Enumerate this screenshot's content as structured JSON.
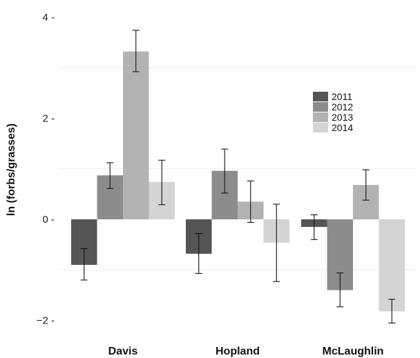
{
  "chart_data": {
    "type": "bar",
    "title": "",
    "xlabel": "",
    "ylabel": "ln (forbs/grasses)",
    "ylim": [
      -2.35,
      4.3
    ],
    "yticks": [
      {
        "value": -2,
        "label": "−2 -"
      },
      {
        "value": 0,
        "label": "0 -"
      },
      {
        "value": 2,
        "label": "2 -"
      },
      {
        "value": 4,
        "label": "4 -"
      }
    ],
    "gridlines": [
      -1,
      1,
      3
    ],
    "categories": [
      "Davis",
      "Hopland",
      "McLaughlin"
    ],
    "series": [
      {
        "name": "2011",
        "color": "#555555",
        "values": [
          -0.9,
          -0.68,
          -0.15
        ],
        "error_low": [
          -1.2,
          -1.07,
          -0.4
        ],
        "error_high": [
          -0.58,
          -0.28,
          0.09
        ]
      },
      {
        "name": "2012",
        "color": "#8c8c8c",
        "values": [
          0.87,
          0.96,
          -1.4
        ],
        "error_low": [
          0.61,
          0.52,
          -1.73
        ],
        "error_high": [
          1.12,
          1.39,
          -1.06
        ]
      },
      {
        "name": "2013",
        "color": "#b3b3b3",
        "values": [
          3.32,
          0.35,
          0.68
        ],
        "error_low": [
          2.92,
          -0.06,
          0.38
        ],
        "error_high": [
          3.74,
          0.76,
          0.98
        ]
      },
      {
        "name": "2014",
        "color": "#d4d4d4",
        "values": [
          0.74,
          -0.46,
          -1.82
        ],
        "error_low": [
          0.29,
          -1.23,
          -2.05
        ],
        "error_high": [
          1.17,
          0.3,
          -1.58
        ]
      }
    ],
    "legend_position": "upper-right",
    "grid": true
  }
}
